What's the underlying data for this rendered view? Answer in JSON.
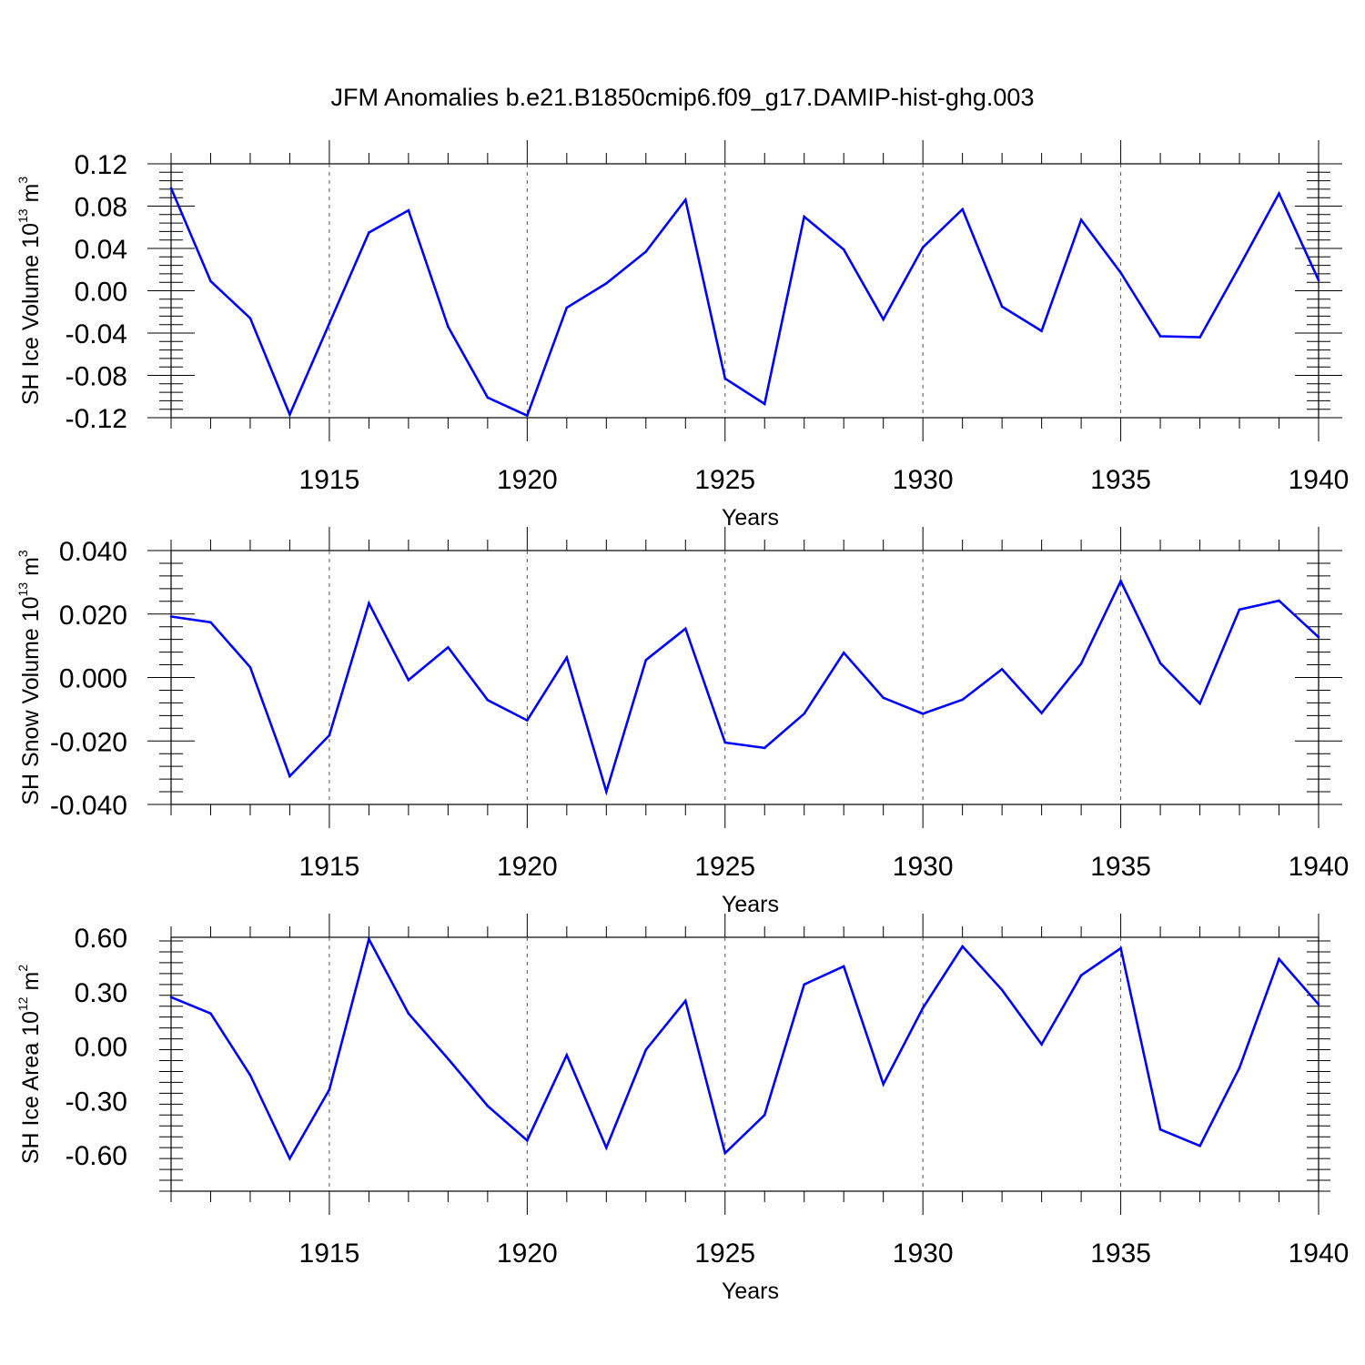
{
  "title": "JFM Anomalies b.e21.B1850cmip6.f09_g17.DAMIP-hist-ghg.003",
  "line_color": "#0000ff",
  "chart_data": [
    {
      "type": "line",
      "id": "ice-volume",
      "ylabel": "SH Ice Volume 10",
      "ylabel_exp": "13",
      "ylabel_unit": " m",
      "ylabel_unit_exp": "3",
      "xlabel": "Years",
      "xlim": [
        1911,
        1940
      ],
      "ylim": [
        -0.12,
        0.12
      ],
      "yticks": [
        -0.12,
        -0.08,
        -0.04,
        0.0,
        0.04,
        0.08,
        0.12
      ],
      "ytick_labels": [
        "-0.12",
        "-0.08",
        "-0.04",
        "0.00",
        "0.04",
        "0.08",
        "0.12"
      ],
      "xticks": [
        1915,
        1920,
        1925,
        1930,
        1935,
        1940
      ],
      "xtick_labels": [
        "1915",
        "1920",
        "1925",
        "1930",
        "1935",
        "1940"
      ],
      "x": [
        1911,
        1912,
        1913,
        1914,
        1915,
        1916,
        1917,
        1918,
        1919,
        1920,
        1921,
        1922,
        1923,
        1924,
        1925,
        1926,
        1927,
        1928,
        1929,
        1930,
        1931,
        1932,
        1933,
        1934,
        1935,
        1936,
        1937,
        1938,
        1939,
        1940
      ],
      "values": [
        0.097,
        0.009,
        -0.026,
        -0.117,
        -0.031,
        0.055,
        0.076,
        -0.034,
        -0.101,
        -0.118,
        -0.016,
        0.007,
        0.037,
        0.086,
        -0.083,
        -0.107,
        0.07,
        0.039,
        -0.027,
        0.041,
        0.077,
        -0.015,
        -0.038,
        0.067,
        0.017,
        -0.043,
        -0.044,
        0.023,
        0.092,
        0.01
      ]
    },
    {
      "type": "line",
      "id": "snow-volume",
      "ylabel": "SH Snow Volume 10",
      "ylabel_exp": "13",
      "ylabel_unit": " m",
      "ylabel_unit_exp": "3",
      "xlabel": "Years",
      "xlim": [
        1911,
        1940
      ],
      "ylim": [
        -0.04,
        0.04
      ],
      "yticks": [
        -0.04,
        -0.02,
        0.0,
        0.02,
        0.04
      ],
      "ytick_labels": [
        "-0.040",
        "-0.020",
        "0.000",
        "0.020",
        "0.040"
      ],
      "xticks": [
        1915,
        1920,
        1925,
        1930,
        1935,
        1940
      ],
      "xtick_labels": [
        "1915",
        "1920",
        "1925",
        "1930",
        "1935",
        "1940"
      ],
      "x": [
        1911,
        1912,
        1913,
        1914,
        1915,
        1916,
        1917,
        1918,
        1919,
        1920,
        1921,
        1922,
        1923,
        1924,
        1925,
        1926,
        1927,
        1928,
        1929,
        1930,
        1931,
        1932,
        1933,
        1934,
        1935,
        1936,
        1937,
        1938,
        1939,
        1940
      ],
      "values": [
        0.0192,
        0.0174,
        0.0032,
        -0.0311,
        -0.0182,
        0.0234,
        -0.0008,
        0.0095,
        -0.0071,
        -0.0135,
        0.0063,
        -0.036,
        0.0055,
        0.0154,
        -0.0205,
        -0.0222,
        -0.0114,
        0.0078,
        -0.0064,
        -0.0114,
        -0.007,
        0.0026,
        -0.0112,
        0.0044,
        0.0304,
        0.0045,
        -0.0082,
        0.0214,
        0.0242,
        0.0127
      ]
    },
    {
      "type": "line",
      "id": "ice-area",
      "ylabel": "SH Ice Area 10",
      "ylabel_exp": "12",
      "ylabel_unit": " m",
      "ylabel_unit_exp": "2",
      "xlabel": "Years",
      "xlim": [
        1911,
        1940
      ],
      "ylim": [
        -0.8,
        0.6
      ],
      "yticks": [
        -0.6,
        -0.3,
        0.0,
        0.3,
        0.6
      ],
      "ytick_labels": [
        "-0.60",
        "-0.30",
        "0.00",
        "0.30",
        "0.60"
      ],
      "xticks": [
        1915,
        1920,
        1925,
        1930,
        1935,
        1940
      ],
      "xtick_labels": [
        "1915",
        "1920",
        "1925",
        "1930",
        "1935",
        "1940"
      ],
      "x": [
        1911,
        1912,
        1913,
        1914,
        1915,
        1916,
        1917,
        1918,
        1919,
        1920,
        1921,
        1922,
        1923,
        1924,
        1925,
        1926,
        1927,
        1928,
        1929,
        1930,
        1931,
        1932,
        1933,
        1934,
        1935,
        1936,
        1937,
        1938,
        1939,
        1940
      ],
      "values": [
        0.27,
        0.18,
        -0.16,
        -0.62,
        -0.24,
        0.59,
        0.18,
        -0.07,
        -0.33,
        -0.52,
        -0.05,
        -0.56,
        -0.02,
        0.25,
        -0.59,
        -0.38,
        0.34,
        0.44,
        -0.21,
        0.21,
        0.55,
        0.31,
        0.01,
        0.39,
        0.54,
        -0.46,
        -0.55,
        -0.12,
        0.48,
        0.23
      ]
    }
  ]
}
